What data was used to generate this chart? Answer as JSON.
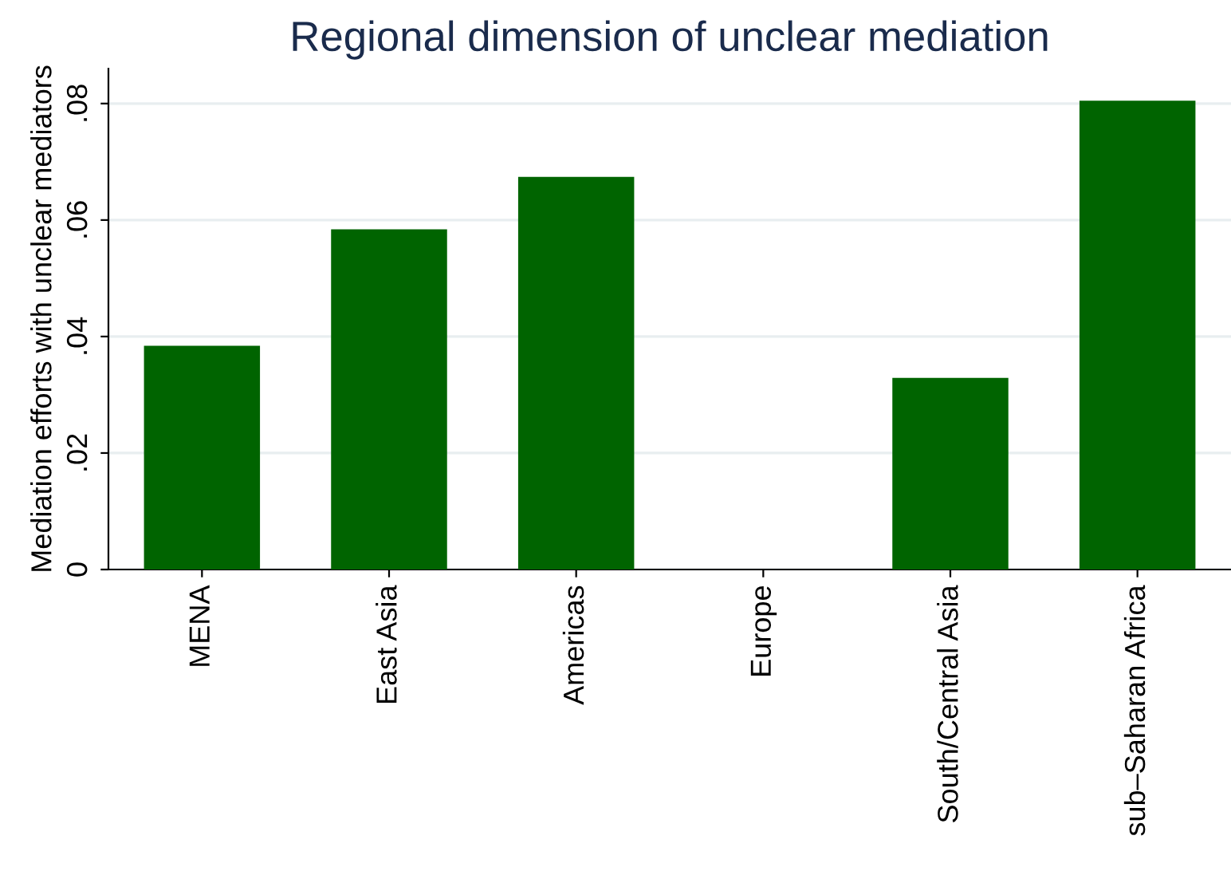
{
  "chart_data": {
    "type": "bar",
    "title": "Regional dimension of unclear mediation",
    "ylabel": "Mediation efforts with unclear mediators",
    "categories": [
      "MENA",
      "East Asia",
      "Americas",
      "Europe",
      "South/Central Asia",
      "sub–Saharan Africa"
    ],
    "values": [
      0.0384,
      0.0584,
      0.0674,
      0,
      0.0329,
      0.0805
    ],
    "color": "#006400",
    "ylim": [
      0,
      0.086
    ],
    "yticks": [
      {
        "value": 0,
        "label": "0"
      },
      {
        "value": 0.02,
        "label": ".02"
      },
      {
        "value": 0.04,
        "label": ".04"
      },
      {
        "value": 0.06,
        "label": ".06"
      },
      {
        "value": 0.08,
        "label": ".08"
      }
    ],
    "grid": "y"
  }
}
